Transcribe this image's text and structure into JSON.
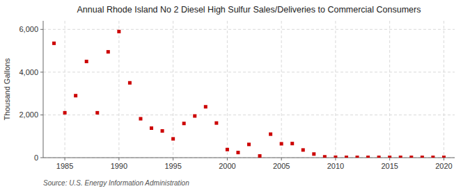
{
  "chart_data": {
    "type": "scatter",
    "title": "Annual Rhode Island No 2 Diesel High Sulfur Sales/Deliveries to Commercial Consumers",
    "ylabel": "Thousand Gallons",
    "source": "Source: U.S. Energy Information Administration",
    "color": "#cc0000",
    "marker": "square",
    "grid": true,
    "xlim": [
      1983,
      2021
    ],
    "ylim": [
      0,
      6400
    ],
    "xticks": [
      1985,
      1990,
      1995,
      2000,
      2005,
      2010,
      2015,
      2020
    ],
    "yticks": [
      0,
      {
        "value": 2000,
        "label": "2,000"
      },
      {
        "value": 4000,
        "label": "4,000"
      },
      {
        "value": 6000,
        "label": "6,000"
      }
    ],
    "x": [
      1984,
      1985,
      1986,
      1987,
      1988,
      1989,
      1990,
      1991,
      1992,
      1993,
      1994,
      1995,
      1996,
      1997,
      1998,
      1999,
      2000,
      2001,
      2002,
      2003,
      2004,
      2005,
      2006,
      2007,
      2008,
      2009,
      2010,
      2011,
      2012,
      2013,
      2014,
      2015,
      2016,
      2017,
      2018,
      2019,
      2020
    ],
    "values": [
      5350,
      2100,
      2900,
      4500,
      2100,
      4950,
      5900,
      3500,
      1820,
      1380,
      1250,
      880,
      1600,
      1950,
      2380,
      1620,
      380,
      240,
      620,
      80,
      1100,
      650,
      660,
      360,
      170,
      40,
      20,
      15,
      15,
      15,
      15,
      15,
      15,
      15,
      15,
      15,
      15
    ]
  }
}
